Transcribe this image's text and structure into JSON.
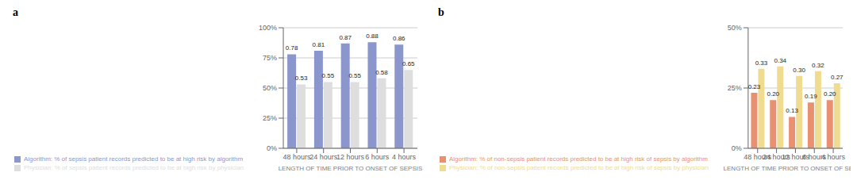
{
  "chart_data": [
    {
      "type": "bar",
      "title": "a",
      "categories": [
        "48 hours",
        "24 hours",
        "12 hours",
        "6 hours",
        "4 hours"
      ],
      "series": [
        {
          "name": "Algorithm: % of sepsis patient records predicted to be at high risk by algorithm",
          "color": "#8B96CC",
          "values": [
            0.78,
            0.81,
            0.87,
            0.88,
            0.86
          ],
          "value_labels": [
            "0.78",
            "0.81",
            "0.87",
            "0.88",
            "0.86"
          ]
        },
        {
          "name": "Physician: % of sepsis patient records predicted  to be at high risk by physician",
          "color": "#DEDEDE",
          "values": [
            0.53,
            0.55,
            0.55,
            0.58,
            0.65
          ],
          "value_labels": [
            "0.53",
            "0.55",
            "0.55",
            "0.58",
            "0.65"
          ]
        }
      ],
      "xlabel": "LENGTH OF TIME PRIOR TO ONSET OF SEPSIS",
      "ylim": [
        0,
        1.0
      ],
      "yticks": [
        {
          "value": 0,
          "label": "0%"
        },
        {
          "value": 0.25,
          "label": "25%"
        },
        {
          "value": 0.5,
          "label": "50%"
        },
        {
          "value": 0.75,
          "label": "75%"
        },
        {
          "value": 1.0,
          "label": "100%"
        }
      ],
      "grid": true,
      "data_labels": true
    },
    {
      "type": "bar",
      "title": "b",
      "categories": [
        "48 hours",
        "24 hours",
        "12 hours",
        "6 hours",
        "4 hours"
      ],
      "series": [
        {
          "name": "Algorithm: % of non-sepsis patient records predicted  to be at high risk of sepsis by algorithm",
          "color": "#E89070",
          "values": [
            0.23,
            0.2,
            0.13,
            0.19,
            0.2
          ],
          "value_labels": [
            "0.23",
            "0.20",
            "0.13",
            "0.19",
            "0.20"
          ]
        },
        {
          "name": "Physician: % of non-sepsis patient records predicted  to be at high risk of sepsis by physician",
          "color": "#F0DC90",
          "values": [
            0.33,
            0.34,
            0.3,
            0.32,
            0.27
          ],
          "value_labels": [
            "0.33",
            "0.34",
            "0.30",
            "0.32",
            "0.27"
          ]
        }
      ],
      "xlabel": "LENGTH OF TIME PRIOR TO ONSET OF SEPSIS",
      "ylim": [
        0,
        0.5
      ],
      "yticks": [
        {
          "value": 0,
          "label": "0%"
        },
        {
          "value": 0.25,
          "label": "25%"
        },
        {
          "value": 0.5,
          "label": "50%"
        }
      ],
      "grid": true,
      "data_labels": true
    }
  ]
}
